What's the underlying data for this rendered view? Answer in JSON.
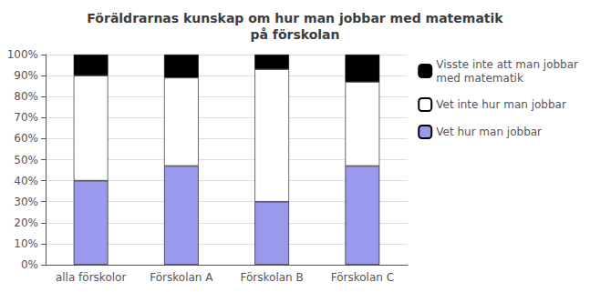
{
  "chart_data": {
    "type": "bar",
    "title": "Föräldrarnas kunskap om hur man jobbar med matematik\npå förskolan",
    "categories": [
      "alla förskolor",
      "Förskolan A",
      "Förskolan B",
      "Förskolan C"
    ],
    "series": [
      {
        "name": "Vet hur man jobbar",
        "color": "#9999ee",
        "values": [
          40,
          47,
          30,
          47
        ]
      },
      {
        "name": "Vet inte hur man jobbar",
        "color": "#ffffff",
        "values": [
          50,
          42,
          63,
          40
        ]
      },
      {
        "name": "Visste inte att man jobbar\nmed matematik",
        "color": "#000000",
        "values": [
          10,
          11,
          7,
          13
        ]
      }
    ],
    "stacked": true,
    "ylim": [
      0,
      100
    ],
    "yticks": [
      {
        "value": 0,
        "label": "0%"
      },
      {
        "value": 10,
        "label": "10%"
      },
      {
        "value": 20,
        "label": "20%"
      },
      {
        "value": 30,
        "label": "30%"
      },
      {
        "value": 40,
        "label": "40%"
      },
      {
        "value": 50,
        "label": "50%"
      },
      {
        "value": 60,
        "label": "60%"
      },
      {
        "value": 70,
        "label": "70%"
      },
      {
        "value": 80,
        "label": "80%"
      },
      {
        "value": 90,
        "label": "90%"
      },
      {
        "value": 100,
        "label": "100%"
      }
    ],
    "grid": true,
    "legend": "upper right"
  }
}
